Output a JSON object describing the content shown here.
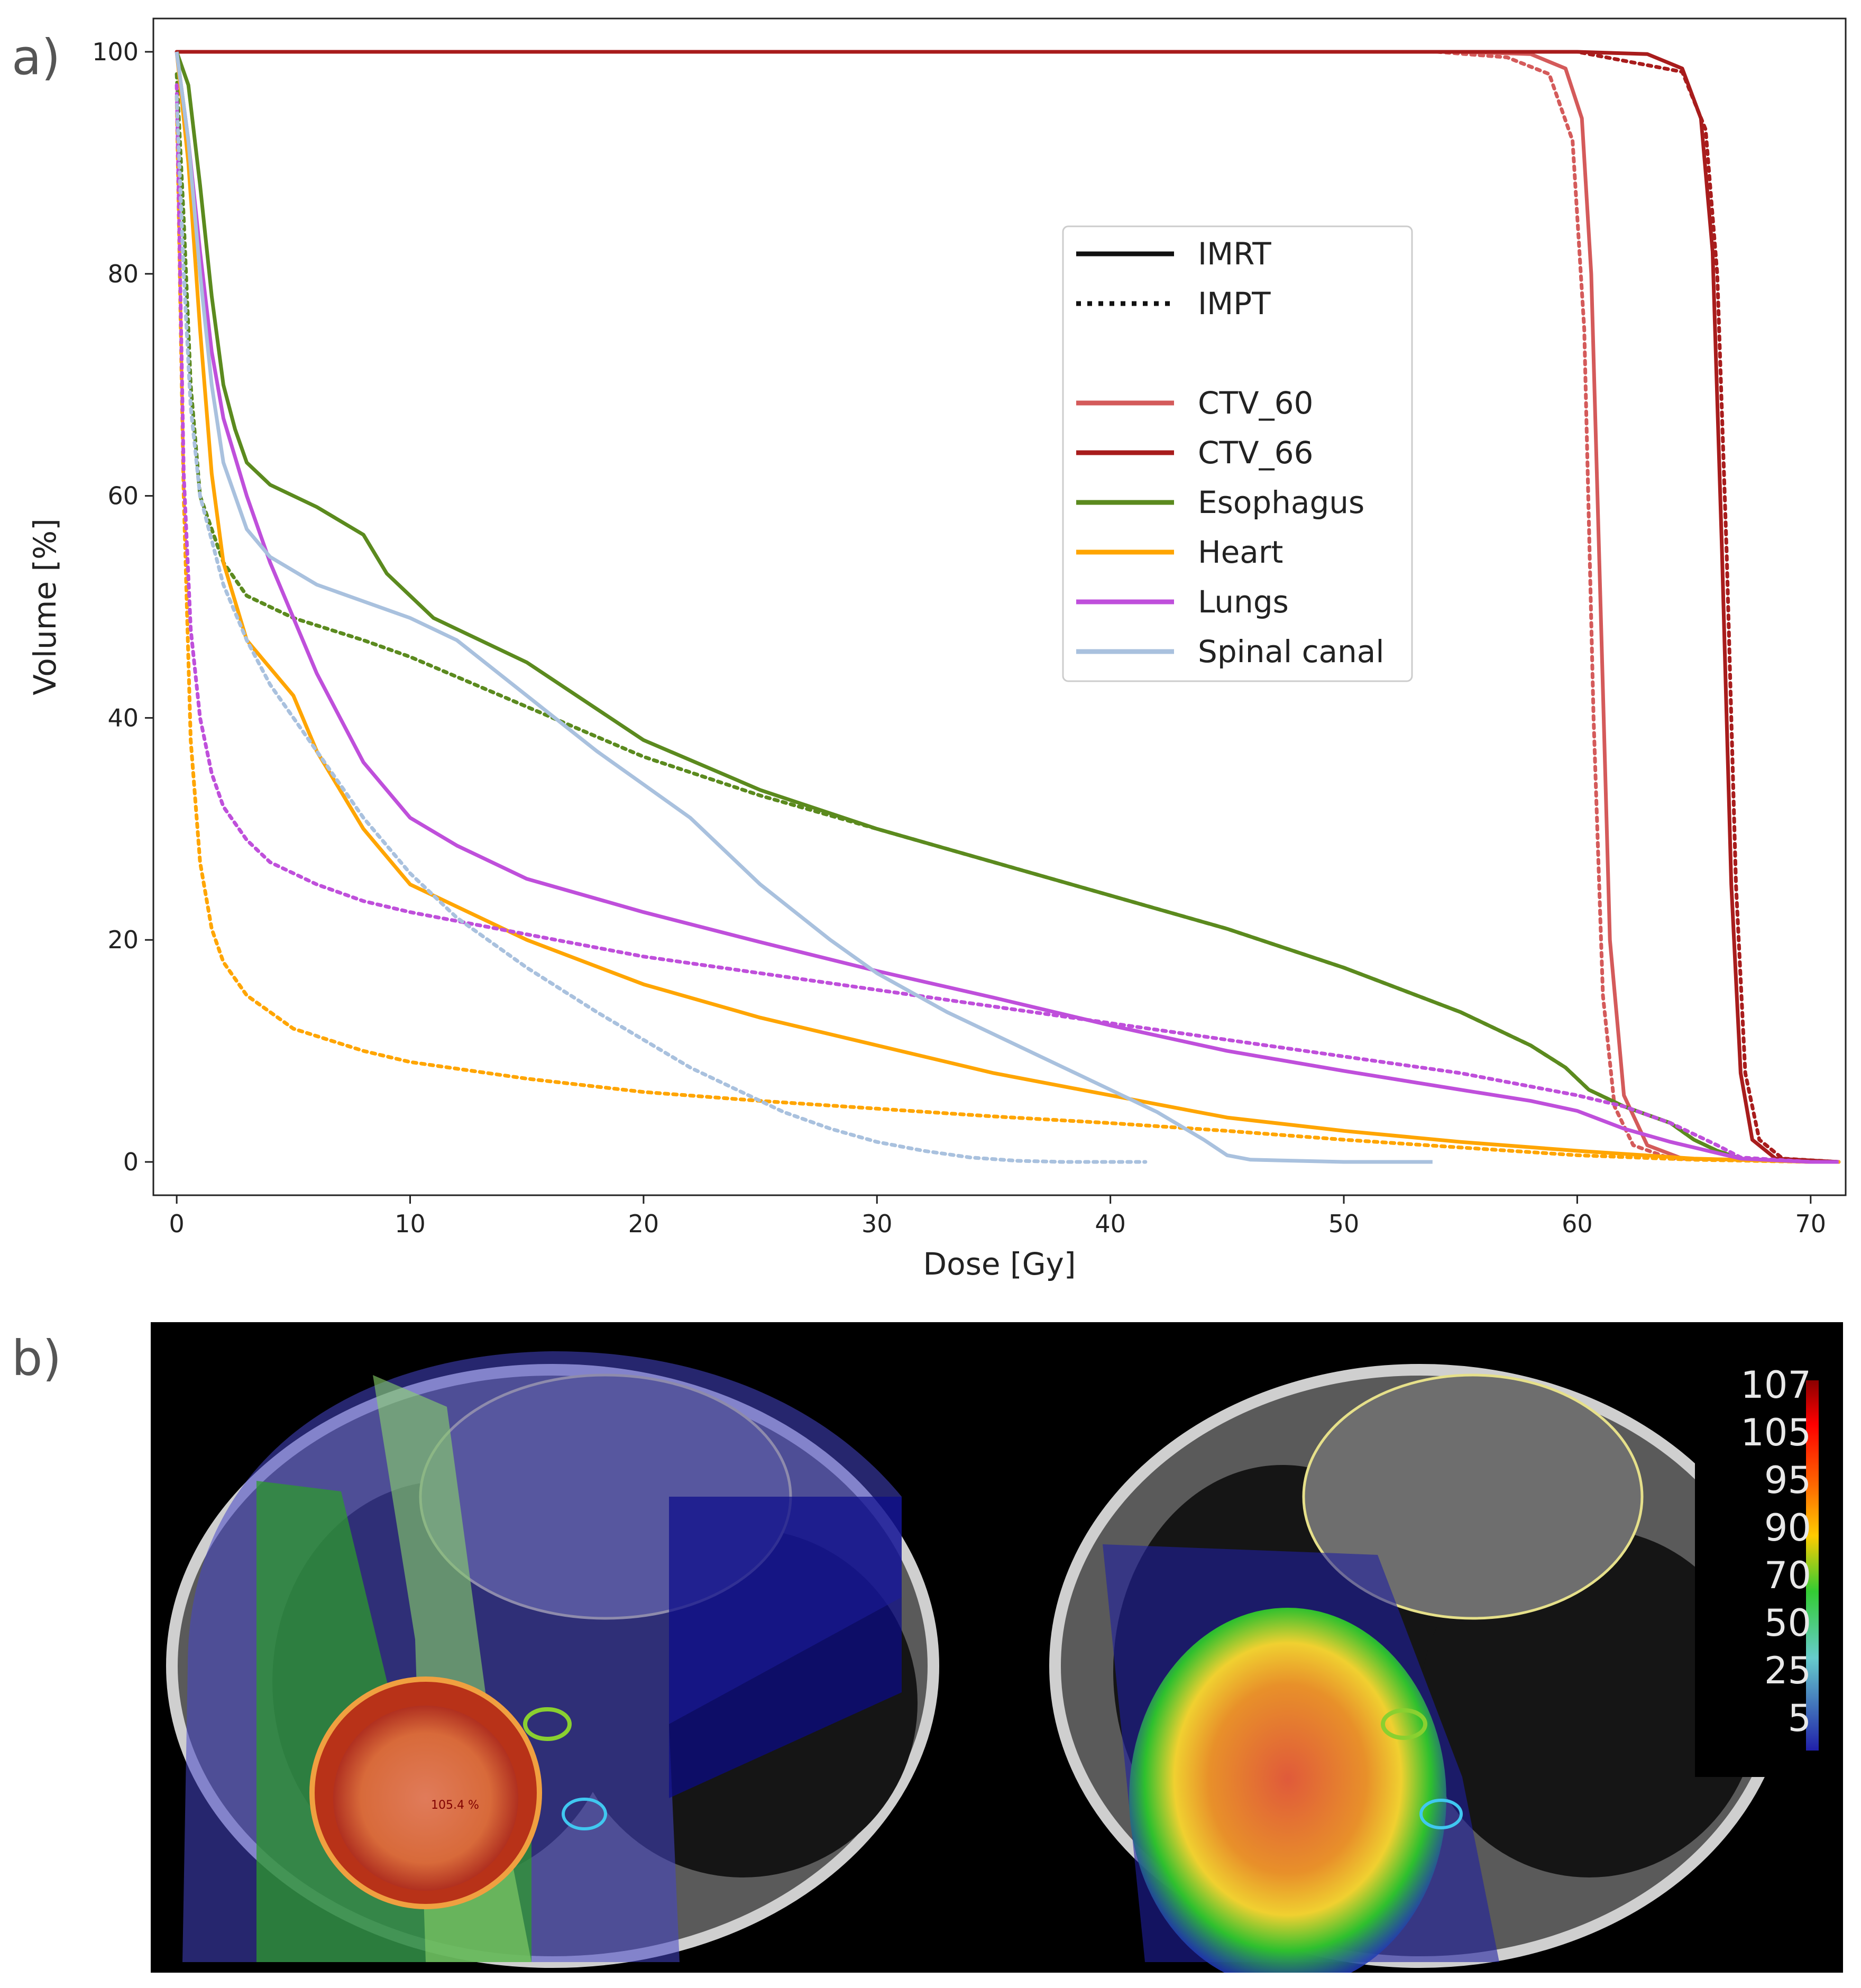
{
  "panels": {
    "a_label": "a)",
    "b_label": "b)"
  },
  "chart_data": {
    "type": "line",
    "title": "",
    "xlabel": "Dose [Gy]",
    "ylabel": "Volume [%]",
    "xlim": [
      -1,
      71.5
    ],
    "ylim": [
      -3,
      103
    ],
    "xticks": [
      0,
      10,
      20,
      30,
      40,
      50,
      60,
      70
    ],
    "yticks": [
      0,
      20,
      40,
      60,
      80,
      100
    ],
    "grid": false,
    "legend_position": "center-right",
    "legend": {
      "style_entries": [
        {
          "label": "IMRT",
          "dash": "solid"
        },
        {
          "label": "IMPT",
          "dash": "dotted"
        }
      ],
      "color_entries": [
        {
          "label": "CTV_60",
          "color": "#d45a5a"
        },
        {
          "label": "CTV_66",
          "color": "#a81c1c"
        },
        {
          "label": "Esophagus",
          "color": "#5b8a1e"
        },
        {
          "label": "Heart",
          "color": "#ffa500"
        },
        {
          "label": "Lungs",
          "color": "#bf4fdb"
        },
        {
          "label": "Spinal canal",
          "color": "#a9c1de"
        }
      ]
    },
    "series": [
      {
        "name": "CTV_60",
        "technique": "IMRT",
        "color": "#d45a5a",
        "dash": "solid",
        "x": [
          0,
          55,
          58,
          59.5,
          60.2,
          60.6,
          61.0,
          61.4,
          62.0,
          63.0,
          64.5,
          71.2
        ],
        "y": [
          100,
          100,
          99.8,
          98.5,
          94,
          80,
          50,
          20,
          6,
          1.5,
          0.3,
          0
        ]
      },
      {
        "name": "CTV_60",
        "technique": "IMPT",
        "color": "#d45a5a",
        "dash": "dotted",
        "x": [
          0,
          54,
          57,
          58.8,
          59.8,
          60.3,
          60.7,
          61.1,
          61.6,
          62.4,
          64,
          71.2
        ],
        "y": [
          100,
          100,
          99.5,
          98,
          92,
          75,
          40,
          15,
          5,
          1.5,
          0.3,
          0
        ]
      },
      {
        "name": "CTV_66",
        "technique": "IMRT",
        "color": "#a81c1c",
        "dash": "solid",
        "x": [
          0,
          60,
          63,
          64.5,
          65.3,
          65.8,
          66.2,
          66.6,
          67.0,
          67.5,
          68.5,
          71.2
        ],
        "y": [
          100,
          100,
          99.8,
          98.5,
          94,
          82,
          55,
          25,
          8,
          2,
          0.3,
          0
        ]
      },
      {
        "name": "CTV_66",
        "technique": "IMPT",
        "color": "#a81c1c",
        "dash": "dotted",
        "x": [
          0,
          60,
          62.5,
          64.5,
          65.5,
          66.0,
          66.4,
          66.8,
          67.2,
          67.8,
          68.8,
          71.2
        ],
        "y": [
          100,
          100,
          99,
          98.2,
          93,
          80,
          55,
          25,
          8,
          2,
          0.3,
          0
        ]
      },
      {
        "name": "Esophagus",
        "technique": "IMRT",
        "color": "#5b8a1e",
        "dash": "solid",
        "x": [
          0,
          0.5,
          1,
          1.5,
          2,
          2.5,
          3,
          4,
          6,
          8,
          9,
          11,
          15,
          20,
          25,
          30,
          35,
          40,
          45,
          50,
          55,
          58,
          59.5,
          60.5,
          62,
          64,
          65,
          66,
          67,
          70,
          71.2
        ],
        "y": [
          100,
          97,
          88,
          78,
          70,
          66,
          63,
          61,
          59,
          56.5,
          53,
          49,
          45,
          38,
          33.5,
          30,
          27,
          24,
          21,
          17.5,
          13.5,
          10.5,
          8.5,
          6.5,
          5,
          3.5,
          2,
          1,
          0.3,
          0,
          0
        ]
      },
      {
        "name": "Esophagus",
        "technique": "IMPT",
        "color": "#5b8a1e",
        "dash": "dotted",
        "x": [
          0,
          0.3,
          0.6,
          1,
          2,
          3,
          5,
          8,
          10,
          15,
          20,
          25,
          30,
          35,
          40,
          45,
          50,
          55,
          58,
          59.5,
          60.5,
          62,
          64,
          65,
          66,
          67,
          70,
          71.2
        ],
        "y": [
          98,
          85,
          70,
          60,
          54,
          51,
          49,
          47,
          45.5,
          41,
          36.5,
          33,
          30,
          27,
          24,
          21,
          17.5,
          13.5,
          10.5,
          8.5,
          6.5,
          5,
          3.5,
          2,
          1,
          0.3,
          0,
          0
        ]
      },
      {
        "name": "Heart",
        "technique": "IMRT",
        "color": "#ffa500",
        "dash": "solid",
        "x": [
          0,
          0.5,
          1,
          1.5,
          2,
          3,
          4,
          5,
          6,
          8,
          10,
          15,
          20,
          25,
          30,
          35,
          40,
          45,
          50,
          55,
          60,
          65,
          70,
          71.2
        ],
        "y": [
          100,
          90,
          75,
          62,
          54,
          47,
          44.5,
          42,
          37,
          30,
          25,
          20,
          16,
          13,
          10.5,
          8,
          6,
          4,
          2.8,
          1.8,
          1,
          0.3,
          0,
          0
        ]
      },
      {
        "name": "Heart",
        "technique": "IMPT",
        "color": "#ffa500",
        "dash": "dotted",
        "x": [
          0,
          0.3,
          0.6,
          1,
          1.5,
          2,
          3,
          5,
          8,
          10,
          15,
          20,
          25,
          30,
          35,
          40,
          45,
          50,
          55,
          60,
          65,
          70,
          71.2
        ],
        "y": [
          96,
          60,
          38,
          27,
          21,
          18,
          15,
          12,
          10,
          9,
          7.5,
          6.3,
          5.5,
          4.8,
          4.1,
          3.5,
          2.8,
          2,
          1.3,
          0.6,
          0.2,
          0,
          0
        ]
      },
      {
        "name": "Lungs",
        "technique": "IMRT",
        "color": "#bf4fdb",
        "dash": "solid",
        "x": [
          0,
          0.5,
          1,
          1.5,
          2,
          3,
          4,
          6,
          8,
          10,
          12,
          15,
          20,
          25,
          30,
          35,
          40,
          45,
          50,
          55,
          58,
          60,
          62,
          64,
          66,
          67,
          70,
          71.2
        ],
        "y": [
          100,
          92,
          82,
          73,
          67,
          60,
          54,
          44,
          36,
          31,
          28.5,
          25.5,
          22.5,
          19.8,
          17.2,
          14.8,
          12.3,
          10,
          8.2,
          6.5,
          5.5,
          4.6,
          3,
          1.8,
          0.8,
          0.3,
          0,
          0
        ]
      },
      {
        "name": "Lungs",
        "technique": "IMPT",
        "color": "#bf4fdb",
        "dash": "dotted",
        "x": [
          0,
          0.3,
          0.6,
          1,
          1.5,
          2,
          3,
          4,
          6,
          8,
          10,
          15,
          20,
          25,
          30,
          35,
          40,
          45,
          50,
          55,
          60,
          62,
          64,
          66,
          67,
          70,
          71.2
        ],
        "y": [
          97,
          62,
          48,
          40,
          35,
          32,
          29,
          27,
          25,
          23.5,
          22.5,
          20.5,
          18.5,
          17,
          15.5,
          14,
          12.5,
          11,
          9.5,
          8,
          6,
          5,
          3.5,
          1.5,
          0.4,
          0,
          0
        ]
      },
      {
        "name": "Spinal canal",
        "technique": "IMRT",
        "color": "#a9c1de",
        "dash": "solid",
        "x": [
          0,
          0.5,
          1,
          1.5,
          2,
          3,
          4,
          6,
          8,
          10,
          12,
          15,
          18,
          20,
          22,
          25,
          28,
          30,
          33,
          35,
          38,
          40,
          42,
          44,
          45,
          46,
          50,
          53.8
        ],
        "y": [
          100,
          92,
          80,
          70,
          63,
          57,
          54.5,
          52,
          50.5,
          49,
          47,
          42,
          37,
          34,
          31,
          25,
          20,
          17,
          13.5,
          11.5,
          8.5,
          6.5,
          4.5,
          2,
          0.6,
          0.2,
          0,
          0
        ]
      },
      {
        "name": "Spinal canal",
        "technique": "IMPT",
        "color": "#a9c1de",
        "dash": "dotted",
        "x": [
          0,
          0.3,
          0.6,
          1,
          2,
          3,
          4,
          6,
          8,
          10,
          12,
          15,
          18,
          20,
          22,
          24,
          26,
          28,
          30,
          32,
          34,
          36,
          38,
          40,
          41.5
        ],
        "y": [
          96,
          80,
          68,
          60,
          52,
          47,
          43,
          37,
          31,
          26,
          22,
          17.5,
          13.5,
          11,
          8.5,
          6.5,
          4.5,
          3,
          1.8,
          1,
          0.4,
          0.1,
          0,
          0,
          0
        ]
      }
    ]
  },
  "colorbar": {
    "labels": [
      "107",
      "105",
      "95",
      "90",
      "70",
      "50",
      "25",
      "5"
    ],
    "colors": [
      "#a50000",
      "#e00000",
      "#ff3300",
      "#ff9900",
      "#ffdd00",
      "#22cc22",
      "#66dddd",
      "#2222cc"
    ]
  },
  "ct_images": {
    "left_dose_label": "105.4 %"
  }
}
